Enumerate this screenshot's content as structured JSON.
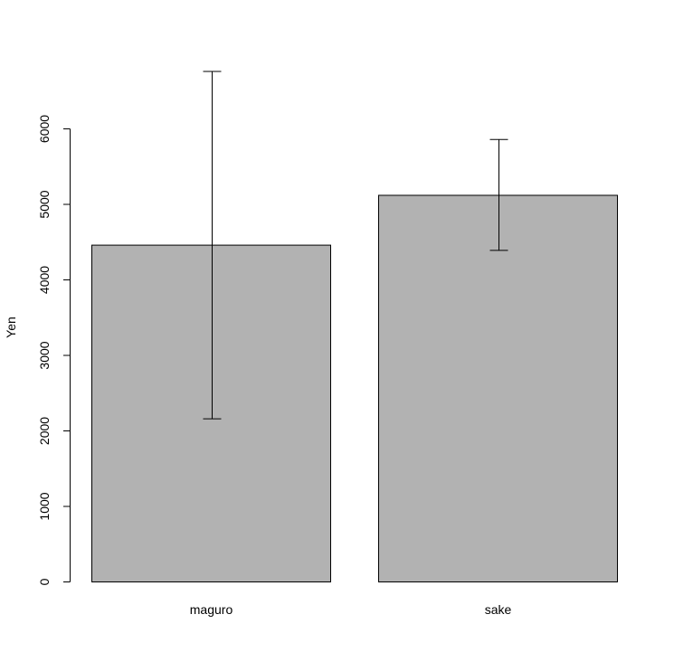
{
  "chart_data": {
    "type": "bar",
    "categories": [
      "maguro",
      "sake"
    ],
    "values": [
      4460,
      5120
    ],
    "error_bars": [
      {
        "low": 2160,
        "high": 6760
      },
      {
        "low": 4390,
        "high": 5860
      }
    ],
    "title": "",
    "xlabel": "",
    "ylabel": "Yen",
    "yticks": [
      0,
      1000,
      2000,
      3000,
      4000,
      5000,
      6000
    ],
    "ylim": [
      0,
      6760
    ],
    "grid": false,
    "colors": {
      "bar_fill": "#b2b2b2",
      "bar_stroke": "#000000",
      "error_bar": "#000000"
    }
  }
}
